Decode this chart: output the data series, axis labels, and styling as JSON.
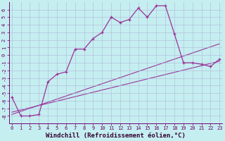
{
  "title": "",
  "xlabel": "Windchill (Refroidissement éolien,°C)",
  "ylabel": "",
  "background_color": "#c5eef0",
  "line_color": "#993399",
  "grid_color": "#b0b8d8",
  "x_values": [
    0,
    1,
    2,
    3,
    4,
    5,
    6,
    7,
    8,
    9,
    10,
    11,
    12,
    13,
    14,
    15,
    16,
    17,
    18,
    19,
    20,
    21,
    22,
    23
  ],
  "y_curve": [
    -5.5,
    -8,
    -8,
    -7.8,
    -3.5,
    -2.5,
    -2.2,
    0.8,
    0.8,
    2.2,
    3.0,
    5.0,
    4.3,
    4.7,
    6.2,
    5.0,
    6.5,
    6.5,
    2.8,
    -1.0,
    -1.0,
    -1.2,
    -1.5,
    -0.5
  ],
  "y_line1_x": [
    0,
    23
  ],
  "y_line1_y": [
    -7.5,
    -0.8
  ],
  "y_line2_x": [
    0,
    23
  ],
  "y_line2_y": [
    -7.8,
    1.5
  ],
  "ylim": [
    -9,
    7
  ],
  "xlim": [
    -0.3,
    23.3
  ],
  "yticks": [
    -8,
    -7,
    -6,
    -5,
    -4,
    -3,
    -2,
    -1,
    0,
    1,
    2,
    3,
    4,
    5,
    6
  ],
  "xticks": [
    0,
    1,
    2,
    3,
    4,
    5,
    6,
    7,
    8,
    9,
    10,
    11,
    12,
    13,
    14,
    15,
    16,
    17,
    18,
    19,
    20,
    21,
    22,
    23
  ],
  "tick_fontsize": 5.0,
  "xlabel_fontsize": 6.5,
  "figsize": [
    3.2,
    2.0
  ],
  "dpi": 100
}
